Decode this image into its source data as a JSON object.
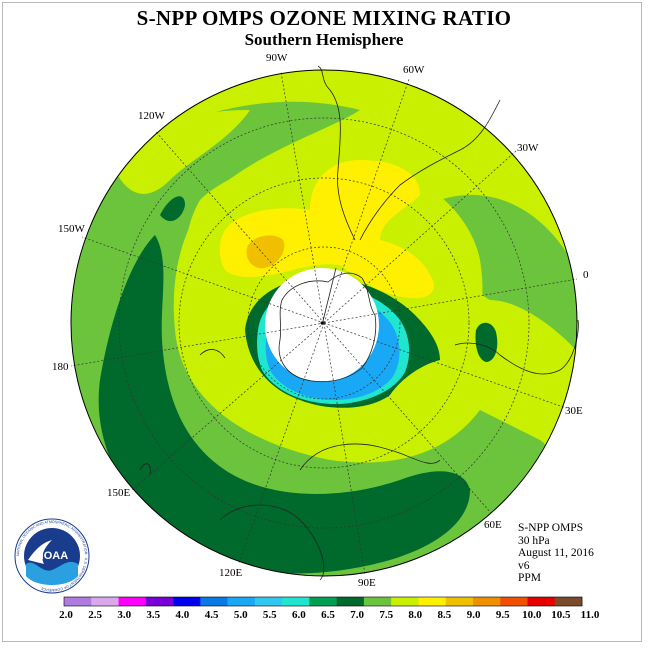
{
  "title": "S-NPP OMPS OZONE MIXING RATIO",
  "subtitle": "Southern Hemisphere",
  "longitude_labels": {
    "w90": "90W",
    "w60": "60W",
    "w30": "30W",
    "e0": "0",
    "e30": "30E",
    "e60": "60E",
    "e90": "90E",
    "e120": "120E",
    "e150": "150E",
    "e180": "180",
    "w150": "150W",
    "w120": "120W"
  },
  "info": {
    "instrument": "S-NPP OMPS",
    "level": "30 hPa",
    "date": "August 11, 2016",
    "version": "v6",
    "units": "PPM"
  },
  "logo": {
    "text": "NOAA",
    "ring_text": "NATIONAL OCEANIC AND ATMOSPHERIC ADMINISTRATION · U.S. DEPARTMENT OF COMMERCE"
  },
  "colorbar": {
    "ticks": [
      "2.0",
      "2.5",
      "3.0",
      "3.5",
      "4.0",
      "4.5",
      "5.0",
      "5.5",
      "6.0",
      "6.5",
      "7.0",
      "7.5",
      "8.0",
      "8.5",
      "9.0",
      "9.5",
      "10.0",
      "10.5",
      "11.0"
    ],
    "colors": [
      "#b07be0",
      "#d9a8ec",
      "#ff00ff",
      "#7a00d8",
      "#0000ee",
      "#0a78e6",
      "#18a8f5",
      "#30c8f0",
      "#20e6d0",
      "#00a050",
      "#006a2c",
      "#6cc43c",
      "#c8f000",
      "#fff000",
      "#f0c000",
      "#f09000",
      "#f05000",
      "#e80000",
      "#7a4a2a"
    ]
  },
  "map_colors": {
    "ocean_base": "#c8f000",
    "green_mid": "#6cc43c",
    "dark_green": "#006a2c",
    "yellow": "#fff000",
    "orange": "#f0c000",
    "cyan": "#20e6d0",
    "light_blue": "#30c8f0",
    "blue": "#18a8f5",
    "polar_night": "#ffffff"
  }
}
